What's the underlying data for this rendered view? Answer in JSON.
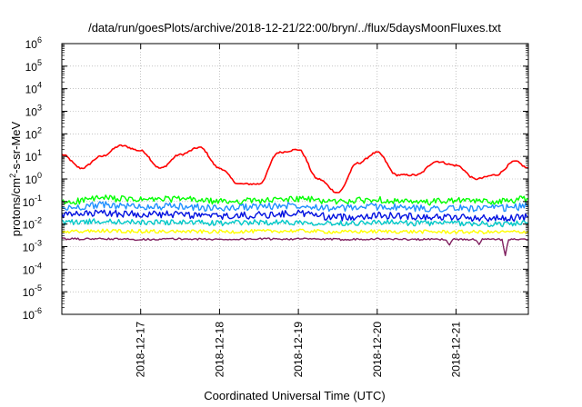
{
  "chart_data": {
    "type": "line",
    "title": "/data/run/goesPlots/archive/2018-12-21/22:00/bryn/../flux/5daysMoonFluxes.txt",
    "xlabel": "Coordinated Universal Time (UTC)",
    "ylabel": {
      "base": "protons/cm",
      "sup": "2",
      "rest": "-s-sr-MeV"
    },
    "y_scale": "log",
    "ylim": [
      1e-06,
      1000000.0
    ],
    "xlim": [
      "2018-12-16T00:00",
      "2018-12-21T22:00"
    ],
    "x_ticks": [
      "2018-12-17",
      "2018-12-18",
      "2018-12-19",
      "2018-12-20",
      "2018-12-21"
    ],
    "y_ticks": [
      {
        "base": "10",
        "exp": "-6"
      },
      {
        "base": "10",
        "exp": "-5"
      },
      {
        "base": "10",
        "exp": "-4"
      },
      {
        "base": "10",
        "exp": "-3"
      },
      {
        "base": "10",
        "exp": "-2"
      },
      {
        "base": "10",
        "exp": "-1"
      },
      {
        "base": "10",
        "exp": "0"
      },
      {
        "base": "10",
        "exp": "1"
      },
      {
        "base": "10",
        "exp": "2"
      },
      {
        "base": "10",
        "exp": "3"
      },
      {
        "base": "10",
        "exp": "4"
      },
      {
        "base": "10",
        "exp": "5"
      },
      {
        "base": "10",
        "exp": "6"
      }
    ],
    "grid": true,
    "legend": "none",
    "series": [
      {
        "color": "#ff0000",
        "x": [
          "2018-12-16T00:00",
          "2018-12-16T06:00",
          "2018-12-16T12:00",
          "2018-12-16T18:00",
          "2018-12-17T00:00",
          "2018-12-17T06:00",
          "2018-12-17T12:00",
          "2018-12-17T18:00",
          "2018-12-18T00:00",
          "2018-12-18T06:00",
          "2018-12-18T12:00",
          "2018-12-18T18:00",
          "2018-12-19T00:00",
          "2018-12-19T06:00",
          "2018-12-19T12:00",
          "2018-12-19T18:00",
          "2018-12-20T00:00",
          "2018-12-20T06:00",
          "2018-12-20T12:00",
          "2018-12-20T18:00",
          "2018-12-21T00:00",
          "2018-12-21T06:00",
          "2018-12-21T12:00",
          "2018-12-21T18:00",
          "2018-12-21T22:00"
        ],
        "values": [
          12,
          3,
          10,
          30,
          18,
          3,
          12,
          25,
          3,
          0.6,
          0.6,
          15,
          20,
          1,
          0.25,
          5,
          15,
          1.5,
          1.5,
          6,
          4,
          1,
          1.5,
          6,
          3
        ]
      },
      {
        "color": "#00ff00",
        "x": [
          "2018-12-16T00:00",
          "2018-12-16T12:00",
          "2018-12-17T00:00",
          "2018-12-17T12:00",
          "2018-12-18T00:00",
          "2018-12-18T12:00",
          "2018-12-19T00:00",
          "2018-12-19T12:00",
          "2018-12-20T00:00",
          "2018-12-20T12:00",
          "2018-12-21T00:00",
          "2018-12-21T12:00",
          "2018-12-21T22:00"
        ],
        "values": [
          0.09,
          0.14,
          0.12,
          0.13,
          0.1,
          0.11,
          0.13,
          0.1,
          0.12,
          0.09,
          0.11,
          0.1,
          0.13
        ]
      },
      {
        "color": "#2090ff",
        "x": [
          "2018-12-16T00:00",
          "2018-12-16T12:00",
          "2018-12-17T00:00",
          "2018-12-17T12:00",
          "2018-12-18T00:00",
          "2018-12-18T12:00",
          "2018-12-19T00:00",
          "2018-12-19T12:00",
          "2018-12-20T00:00",
          "2018-12-20T12:00",
          "2018-12-21T00:00",
          "2018-12-21T12:00",
          "2018-12-21T22:00"
        ],
        "values": [
          0.05,
          0.07,
          0.06,
          0.06,
          0.05,
          0.06,
          0.07,
          0.05,
          0.06,
          0.05,
          0.05,
          0.05,
          0.06
        ]
      },
      {
        "color": "#0010e0",
        "x": [
          "2018-12-16T00:00",
          "2018-12-16T12:00",
          "2018-12-17T00:00",
          "2018-12-17T12:00",
          "2018-12-18T00:00",
          "2018-12-18T12:00",
          "2018-12-19T00:00",
          "2018-12-19T12:00",
          "2018-12-20T00:00",
          "2018-12-20T12:00",
          "2018-12-21T00:00",
          "2018-12-21T12:00",
          "2018-12-21T22:00"
        ],
        "values": [
          0.025,
          0.03,
          0.028,
          0.026,
          0.022,
          0.025,
          0.03,
          0.02,
          0.024,
          0.022,
          0.02,
          0.018,
          0.02
        ]
      },
      {
        "color": "#00c8c8",
        "x": [
          "2018-12-16T00:00",
          "2018-12-16T12:00",
          "2018-12-17T00:00",
          "2018-12-17T12:00",
          "2018-12-18T00:00",
          "2018-12-18T12:00",
          "2018-12-19T00:00",
          "2018-12-19T12:00",
          "2018-12-20T00:00",
          "2018-12-20T12:00",
          "2018-12-21T00:00",
          "2018-12-21T12:00",
          "2018-12-21T22:00"
        ],
        "values": [
          0.012,
          0.013,
          0.012,
          0.012,
          0.011,
          0.012,
          0.012,
          0.011,
          0.012,
          0.011,
          0.011,
          0.01,
          0.011
        ]
      },
      {
        "color": "#ffff00",
        "x": [
          "2018-12-16T00:00",
          "2018-12-16T12:00",
          "2018-12-17T00:00",
          "2018-12-17T12:00",
          "2018-12-18T00:00",
          "2018-12-18T12:00",
          "2018-12-19T00:00",
          "2018-12-19T12:00",
          "2018-12-20T00:00",
          "2018-12-20T12:00",
          "2018-12-21T00:00",
          "2018-12-21T12:00",
          "2018-12-21T22:00"
        ],
        "values": [
          0.0045,
          0.005,
          0.0048,
          0.0047,
          0.0046,
          0.0048,
          0.005,
          0.0045,
          0.0047,
          0.0046,
          0.0045,
          0.0044,
          0.0046
        ]
      },
      {
        "color": "#802060",
        "x": [
          "2018-12-16T00:00",
          "2018-12-16T12:00",
          "2018-12-17T00:00",
          "2018-12-17T12:00",
          "2018-12-18T00:00",
          "2018-12-18T12:00",
          "2018-12-19T00:00",
          "2018-12-19T12:00",
          "2018-12-20T00:00",
          "2018-12-20T12:00",
          "2018-12-20T21:00",
          "2018-12-20T22:00",
          "2018-12-20T23:00",
          "2018-12-21T06:00",
          "2018-12-21T07:00",
          "2018-12-21T08:00",
          "2018-12-21T14:00",
          "2018-12-21T15:00",
          "2018-12-21T16:00",
          "2018-12-21T22:00"
        ],
        "values": [
          0.0022,
          0.0022,
          0.0021,
          0.0022,
          0.0021,
          0.0022,
          0.0022,
          0.0021,
          0.0022,
          0.0021,
          0.0021,
          0.0012,
          0.0021,
          0.0021,
          0.0013,
          0.0021,
          0.0021,
          0.0004,
          0.0021,
          0.0021
        ]
      }
    ]
  }
}
